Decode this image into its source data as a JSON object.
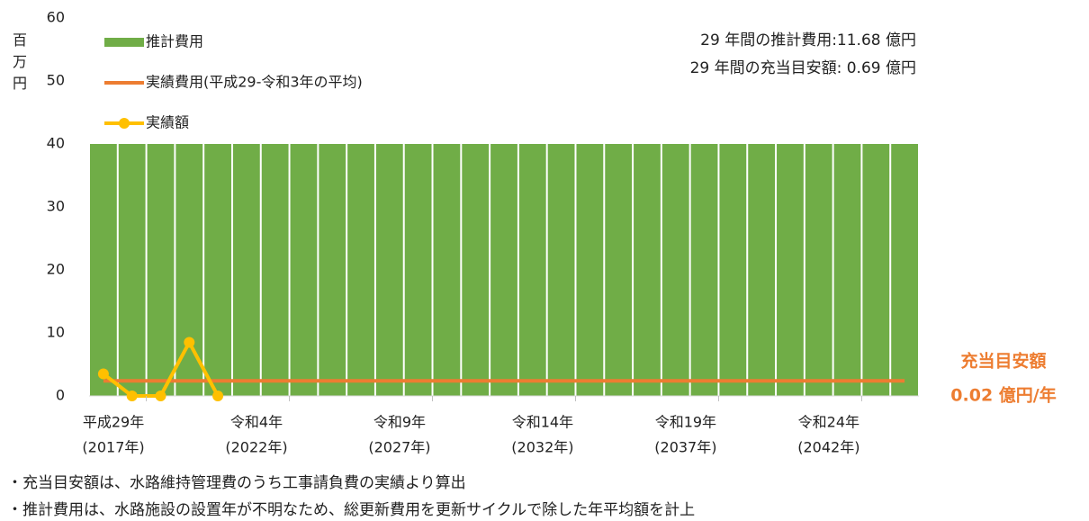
{
  "chart_data": {
    "type": "bar",
    "y_label": "百万円",
    "categories": [
      [
        "平成29年",
        "(2017年)"
      ],
      null,
      null,
      null,
      null,
      [
        "令和4年",
        "(2022年)"
      ],
      null,
      null,
      null,
      null,
      [
        "令和9年",
        "(2027年)"
      ],
      null,
      null,
      null,
      null,
      [
        "令和14年",
        "(2032年)"
      ],
      null,
      null,
      null,
      null,
      [
        "令和19年",
        "(2037年)"
      ],
      null,
      null,
      null,
      null,
      [
        "令和24年",
        "(2042年)"
      ],
      null,
      null,
      null
    ],
    "series": [
      {
        "name": "推計費用",
        "type": "bar",
        "color": "#70ad47",
        "values": [
          40,
          40,
          40,
          40,
          40,
          40,
          40,
          40,
          40,
          40,
          40,
          40,
          40,
          40,
          40,
          40,
          40,
          40,
          40,
          40,
          40,
          40,
          40,
          40,
          40,
          40,
          40,
          40,
          40
        ]
      },
      {
        "name": "実績費用(平成29-令和3年の平均)",
        "type": "line",
        "color": "#ed7d31",
        "values": [
          2.4,
          2.4,
          2.4,
          2.4,
          2.4,
          2.4,
          2.4,
          2.4,
          2.4,
          2.4,
          2.4,
          2.4,
          2.4,
          2.4,
          2.4,
          2.4,
          2.4,
          2.4,
          2.4,
          2.4,
          2.4,
          2.4,
          2.4,
          2.4,
          2.4,
          2.4,
          2.4,
          2.4,
          2.4
        ]
      },
      {
        "name": "実績額",
        "type": "line",
        "markers": true,
        "color": "#ffc000",
        "values": [
          3.5,
          0,
          0,
          8.5,
          0,
          null,
          null,
          null,
          null,
          null,
          null,
          null,
          null,
          null,
          null,
          null,
          null,
          null,
          null,
          null,
          null,
          null,
          null,
          null,
          null,
          null,
          null,
          null,
          null
        ]
      }
    ],
    "ylim": [
      0,
      60
    ],
    "yticks": [
      0,
      10,
      20,
      30,
      40,
      50,
      60
    ],
    "annotations": [
      "29 年間の推計費用:11.68 億円",
      "29 年間の充当目安額: 0.69 億円"
    ],
    "target_label": [
      "充当目安額",
      "0.02 億円/年"
    ],
    "footnotes": [
      "・充当目安額は、水路維持管理費のうち工事請負費の実績より算出",
      "・推計費用は、水路施設の設置年が不明なため、総更新費用を更新サイクルで除した年平均額を計上"
    ]
  }
}
